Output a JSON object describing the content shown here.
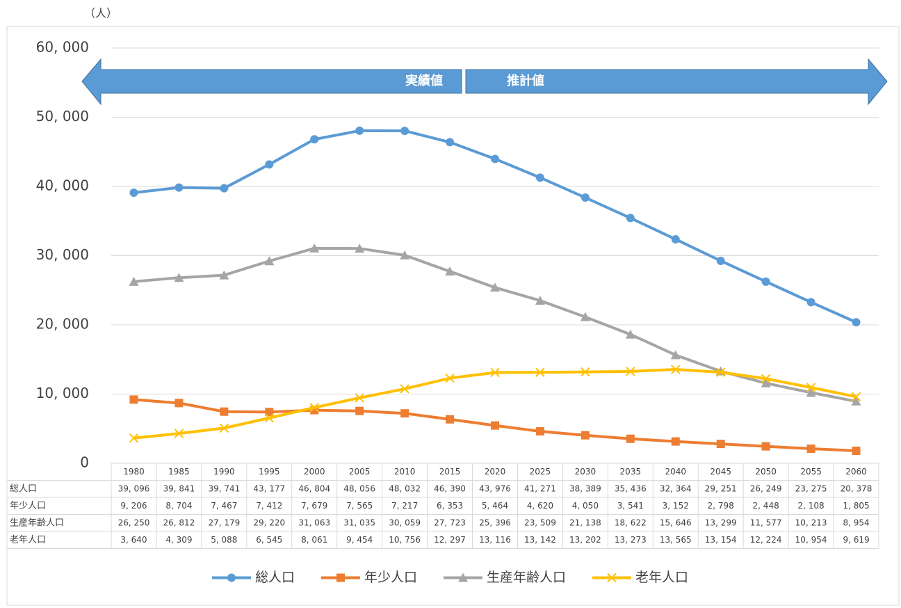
{
  "chart_data": {
    "type": "line",
    "unit_label": "（人）",
    "annotations": [
      "実績値",
      "推計値"
    ],
    "categories": [
      "1980",
      "1985",
      "1990",
      "1995",
      "2000",
      "2005",
      "2010",
      "2015",
      "2020",
      "2025",
      "2030",
      "2035",
      "2040",
      "2045",
      "2050",
      "2055",
      "2060"
    ],
    "ylim": [
      0,
      60000
    ],
    "yticks": [
      0,
      {
        "value": 10000,
        "label": "10, 000"
      },
      {
        "value": 20000,
        "label": "20, 000"
      },
      {
        "value": 30000,
        "label": "30, 000"
      },
      {
        "value": 40000,
        "label": "40, 000"
      },
      {
        "value": 50000,
        "label": "50, 000"
      },
      {
        "value": 60000,
        "label": "60, 000"
      }
    ],
    "grid": true,
    "legend": "bottom",
    "series": [
      {
        "name": "総人口",
        "color": "#5b9bd5",
        "marker": "circle",
        "values": [
          39096,
          39841,
          39741,
          43177,
          46804,
          48056,
          48032,
          46390,
          43976,
          41271,
          38389,
          35436,
          32364,
          29251,
          26249,
          23275,
          20378
        ],
        "value_labels": [
          "39, 096",
          "39, 841",
          "39, 741",
          "43, 177",
          "46, 804",
          "48, 056",
          "48, 032",
          "46, 390",
          "43, 976",
          "41, 271",
          "38, 389",
          "35, 436",
          "32, 364",
          "29, 251",
          "26, 249",
          "23, 275",
          "20, 378"
        ]
      },
      {
        "name": "年少人口",
        "color": "#ed7d31",
        "marker": "square",
        "values": [
          9206,
          8704,
          7467,
          7412,
          7679,
          7565,
          7217,
          6353,
          5464,
          4620,
          4050,
          3541,
          3152,
          2798,
          2448,
          2108,
          1805
        ],
        "value_labels": [
          "9, 206",
          "8, 704",
          "7, 467",
          "7, 412",
          "7, 679",
          "7, 565",
          "7, 217",
          "6, 353",
          "5, 464",
          "4, 620",
          "4, 050",
          "3, 541",
          "3, 152",
          "2, 798",
          "2, 448",
          "2, 108",
          "1, 805"
        ]
      },
      {
        "name": "生産年齢人口",
        "color": "#a5a5a5",
        "marker": "triangle",
        "values": [
          26250,
          26812,
          27179,
          29220,
          31063,
          31035,
          30059,
          27723,
          25396,
          23509,
          21138,
          18622,
          15646,
          13299,
          11577,
          10213,
          8954
        ],
        "value_labels": [
          "26, 250",
          "26, 812",
          "27, 179",
          "29, 220",
          "31, 063",
          "31, 035",
          "30, 059",
          "27, 723",
          "25, 396",
          "23, 509",
          "21, 138",
          "18, 622",
          "15, 646",
          "13, 299",
          "11, 577",
          "10, 213",
          "8, 954"
        ]
      },
      {
        "name": "老年人口",
        "color": "#ffc000",
        "marker": "x",
        "values": [
          3640,
          4309,
          5088,
          6545,
          8061,
          9454,
          10756,
          12297,
          13116,
          13142,
          13202,
          13273,
          13565,
          13154,
          12224,
          10954,
          9619
        ],
        "value_labels": [
          "3, 640",
          "4, 309",
          "5, 088",
          "6, 545",
          "8, 061",
          "9, 454",
          "10, 756",
          "12, 297",
          "13, 116",
          "13, 142",
          "13, 202",
          "13, 273",
          "13, 565",
          "13, 154",
          "12, 224",
          "10, 954",
          "9, 619"
        ]
      }
    ]
  }
}
